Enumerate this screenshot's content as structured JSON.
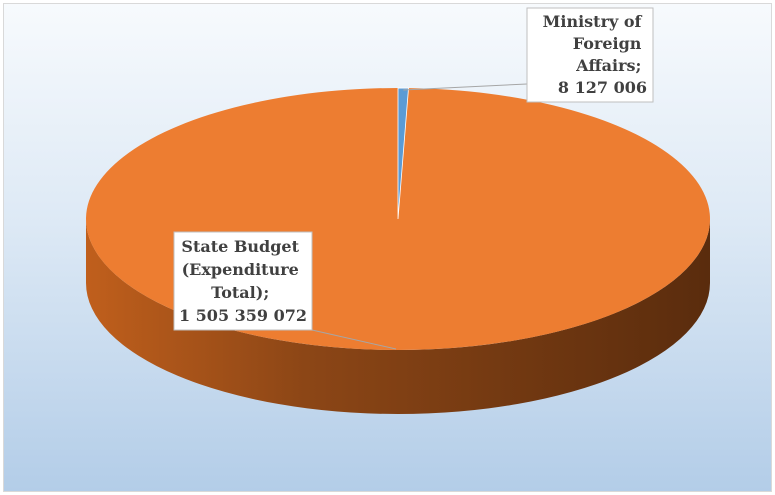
{
  "chart_data": {
    "type": "pie",
    "title": "",
    "style": "3d",
    "legend": "none",
    "series": [
      {
        "category_lines": [
          "State Budget",
          "(Expenditure",
          "Total);"
        ],
        "value_label": "1 505 359 072",
        "value": 1505359072,
        "color": "#ed7d31"
      },
      {
        "category_lines": [
          "Ministry of",
          "Foreign",
          "Affairs;"
        ],
        "value_label": "8 127 006",
        "value": 8127006,
        "color": "#5b9bd5"
      }
    ]
  }
}
